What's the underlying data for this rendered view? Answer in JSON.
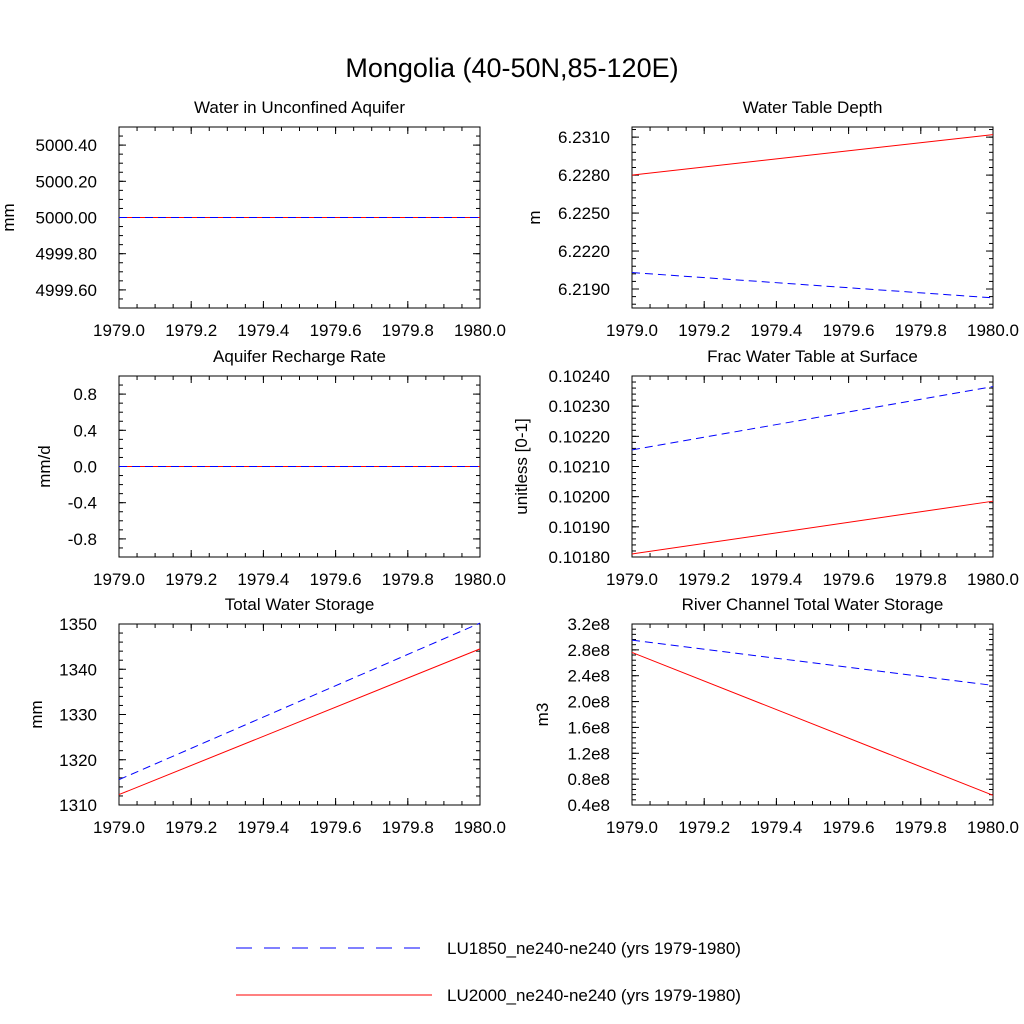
{
  "figure": {
    "title": "Mongolia (40-50N,85-120E)"
  },
  "colors": {
    "LU1850": "#0000ff",
    "LU2000": "#ff0000",
    "frame": "#000000"
  },
  "legend": {
    "placement": "bottom-center",
    "entries": [
      {
        "key": "LU1850",
        "label": "LU1850_ne240-ne240 (yrs 1979-1980)",
        "style": "dashed",
        "color": "#0000ff"
      },
      {
        "key": "LU2000",
        "label": "LU2000_ne240-ne240 (yrs 1979-1980)",
        "style": "solid",
        "color": "#ff0000"
      }
    ]
  },
  "chart_data": [
    {
      "id": "water-unconfined-aquifer",
      "type": "line",
      "title": "Water in Unconfined Aquifer",
      "ylabel": "mm",
      "xlim": [
        1979.0,
        1980.0
      ],
      "ylim": [
        4999.5,
        5000.5
      ],
      "xticks": [
        "1979.0",
        "1979.2",
        "1979.4",
        "1979.6",
        "1979.8",
        "1980.0"
      ],
      "yticks": [
        "4999.60",
        "4999.80",
        "5000.00",
        "5000.20",
        "5000.40"
      ],
      "x": [
        1979.0,
        1980.0
      ],
      "series": [
        {
          "name": "LU1850_ne240-ne240 (yrs 1979-1980)",
          "key": "LU1850",
          "values": [
            5000.0,
            5000.0
          ]
        },
        {
          "name": "LU2000_ne240-ne240 (yrs 1979-1980)",
          "key": "LU2000",
          "values": [
            5000.0,
            5000.0
          ]
        }
      ]
    },
    {
      "id": "water-table-depth",
      "type": "line",
      "title": "Water Table Depth",
      "ylabel": "m",
      "xlim": [
        1979.0,
        1980.0
      ],
      "ylim": [
        6.2175,
        6.2318
      ],
      "xticks": [
        "1979.0",
        "1979.2",
        "1979.4",
        "1979.6",
        "1979.8",
        "1980.0"
      ],
      "yticks": [
        "6.2190",
        "6.2220",
        "6.2250",
        "6.2280",
        "6.2310"
      ],
      "x": [
        1979.0,
        1980.0
      ],
      "series": [
        {
          "name": "LU1850_ne240-ne240 (yrs 1979-1980)",
          "key": "LU1850",
          "values": [
            6.2203,
            6.2183
          ]
        },
        {
          "name": "LU2000_ne240-ne240 (yrs 1979-1980)",
          "key": "LU2000",
          "values": [
            6.228,
            6.2312
          ]
        }
      ]
    },
    {
      "id": "aquifer-recharge-rate",
      "type": "line",
      "title": "Aquifer Recharge Rate",
      "ylabel": "mm/d",
      "xlim": [
        1979.0,
        1980.0
      ],
      "ylim": [
        -1.0,
        1.0
      ],
      "xticks": [
        "1979.0",
        "1979.2",
        "1979.4",
        "1979.6",
        "1979.8",
        "1980.0"
      ],
      "yticks": [
        "-0.8",
        "-0.4",
        "0.0",
        "0.4",
        "0.8"
      ],
      "x": [
        1979.0,
        1980.0
      ],
      "series": [
        {
          "name": "LU1850_ne240-ne240 (yrs 1979-1980)",
          "key": "LU1850",
          "values": [
            0.0,
            0.0
          ]
        },
        {
          "name": "LU2000_ne240-ne240 (yrs 1979-1980)",
          "key": "LU2000",
          "values": [
            0.0,
            0.0
          ]
        }
      ]
    },
    {
      "id": "frac-water-table-surface",
      "type": "line",
      "title": "Frac Water Table at Surface",
      "ylabel": "unitless [0-1]",
      "xlim": [
        1979.0,
        1980.0
      ],
      "ylim": [
        0.1018,
        0.1024
      ],
      "xticks": [
        "1979.0",
        "1979.2",
        "1979.4",
        "1979.6",
        "1979.8",
        "1980.0"
      ],
      "yticks": [
        "0.10180",
        "0.10190",
        "0.10200",
        "0.10210",
        "0.10220",
        "0.10230",
        "0.10240"
      ],
      "x": [
        1979.0,
        1980.0
      ],
      "series": [
        {
          "name": "LU1850_ne240-ne240 (yrs 1979-1980)",
          "key": "LU1850",
          "values": [
            0.102155,
            0.102365
          ]
        },
        {
          "name": "LU2000_ne240-ne240 (yrs 1979-1980)",
          "key": "LU2000",
          "values": [
            0.10181,
            0.101985
          ]
        }
      ]
    },
    {
      "id": "total-water-storage",
      "type": "line",
      "title": "Total Water Storage",
      "ylabel": "mm",
      "xlim": [
        1979.0,
        1980.0
      ],
      "ylim": [
        1310,
        1350
      ],
      "xticks": [
        "1979.0",
        "1979.2",
        "1979.4",
        "1979.6",
        "1979.8",
        "1980.0"
      ],
      "yticks": [
        "1310",
        "1320",
        "1330",
        "1340",
        "1350"
      ],
      "x": [
        1979.0,
        1980.0
      ],
      "series": [
        {
          "name": "LU1850_ne240-ne240 (yrs 1979-1980)",
          "key": "LU1850",
          "values": [
            1315.6,
            1350.2
          ]
        },
        {
          "name": "LU2000_ne240-ne240 (yrs 1979-1980)",
          "key": "LU2000",
          "values": [
            1312.3,
            1344.5
          ]
        }
      ]
    },
    {
      "id": "river-channel-storage",
      "type": "line",
      "title": "River Channel Total Water Storage",
      "ylabel": "m3",
      "xlim": [
        1979.0,
        1980.0
      ],
      "ylim": [
        40000000.0,
        320000000.0
      ],
      "xticks": [
        "1979.0",
        "1979.2",
        "1979.4",
        "1979.6",
        "1979.8",
        "1980.0"
      ],
      "yticks": [
        "0.4e8",
        "0.8e8",
        "1.2e8",
        "1.6e8",
        "2.0e8",
        "2.4e8",
        "2.8e8",
        "3.2e8"
      ],
      "x": [
        1979.0,
        1980.0
      ],
      "series": [
        {
          "name": "LU1850_ne240-ne240 (yrs 1979-1980)",
          "key": "LU1850",
          "values": [
            295000000.0,
            225000000.0
          ]
        },
        {
          "name": "LU2000_ne240-ne240 (yrs 1979-1980)",
          "key": "LU2000",
          "values": [
            276000000.0,
            55000000.0
          ]
        }
      ]
    }
  ]
}
